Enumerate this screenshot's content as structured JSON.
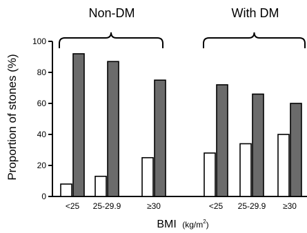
{
  "chart_data": {
    "type": "bar",
    "groups": [
      {
        "name": "Non-DM",
        "categories": [
          "<25",
          "25-29.9",
          "≥30"
        ]
      },
      {
        "name": "With DM",
        "categories": [
          "<25",
          "25-29.9",
          "≥30"
        ]
      }
    ],
    "series": [
      {
        "values": [
          8,
          13,
          25,
          28,
          34,
          40
        ],
        "color": "#ffffff"
      },
      {
        "values": [
          92,
          87,
          75,
          72,
          66,
          60
        ],
        "color": "#6b6b6b"
      }
    ],
    "ylabel": "Proportion of stones (%)",
    "xlabel": "BMI",
    "xlabel_unit": "(kg/m",
    "xlabel_unit_sup": "2",
    "xlabel_unit_close": ")",
    "ylim": [
      0,
      100
    ],
    "yticks": [
      0,
      20,
      40,
      60,
      80,
      100
    ],
    "grid": false,
    "legend": "none"
  }
}
